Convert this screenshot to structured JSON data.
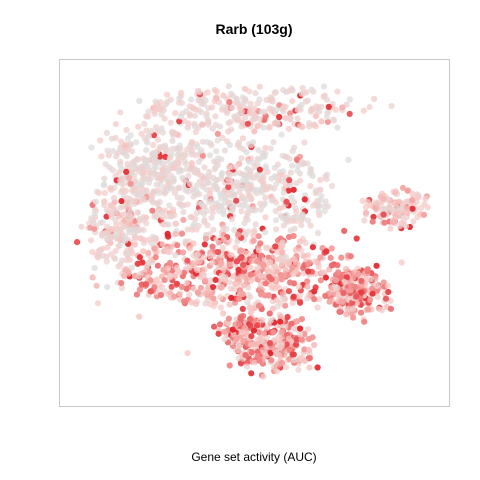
{
  "chart_data": {
    "type": "scatter",
    "title": "Rarb (103g)",
    "xlabel": "Gene set activity (AUC)",
    "ylabel": "",
    "axes_ticks": "none",
    "grid": false,
    "legend": "none",
    "color_scale": {
      "low": "#dcdcdc",
      "mid": "#f8c8c4",
      "high": "#e3242b"
    },
    "clusters": [
      {
        "name": "top",
        "cx": 0.48,
        "cy": 0.13,
        "rx": 0.27,
        "ry": 0.07,
        "n": 260,
        "level": 0.3
      },
      {
        "name": "upper-left",
        "cx": 0.22,
        "cy": 0.28,
        "rx": 0.13,
        "ry": 0.1,
        "n": 220,
        "level": 0.22
      },
      {
        "name": "center",
        "cx": 0.45,
        "cy": 0.37,
        "rx": 0.25,
        "ry": 0.15,
        "n": 520,
        "level": 0.18
      },
      {
        "name": "left",
        "cx": 0.15,
        "cy": 0.48,
        "rx": 0.1,
        "ry": 0.15,
        "n": 260,
        "level": 0.3
      },
      {
        "name": "lower-band",
        "cx": 0.46,
        "cy": 0.62,
        "rx": 0.3,
        "ry": 0.11,
        "n": 620,
        "level": 0.55
      },
      {
        "name": "right-arm",
        "cx": 0.88,
        "cy": 0.43,
        "rx": 0.08,
        "ry": 0.06,
        "n": 130,
        "level": 0.4
      },
      {
        "name": "right-low",
        "cx": 0.78,
        "cy": 0.69,
        "rx": 0.08,
        "ry": 0.07,
        "n": 180,
        "level": 0.6
      },
      {
        "name": "bottom",
        "cx": 0.55,
        "cy": 0.84,
        "rx": 0.11,
        "ry": 0.08,
        "n": 240,
        "level": 0.58
      },
      {
        "name": "bottom-left",
        "cx": 0.46,
        "cy": 0.79,
        "rx": 0.05,
        "ry": 0.04,
        "n": 60,
        "level": 0.65
      }
    ]
  }
}
